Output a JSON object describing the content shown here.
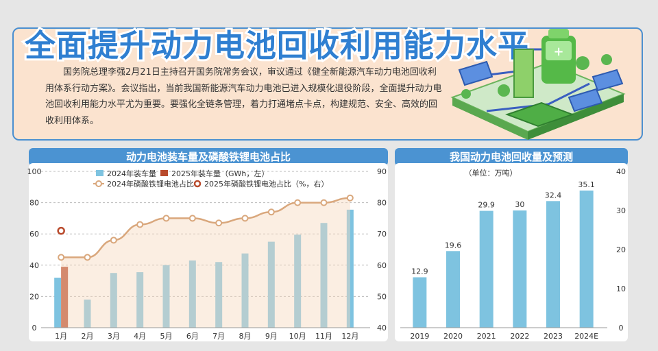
{
  "header": {
    "title": "全面提升动力电池回收利用能力水平",
    "intro": "国务院总理李强2月21日主持召开国务院常务会议，审议通过《健全新能源汽车动力电池回收利用体系行动方案》。会议指出，当前我国新能源汽车动力电池已进入规模化退役阶段，全面提升动力电池回收利用能力水平尤为重要。要强化全链条管理，着力打通堵点卡点，构建规范、安全、高效的回收利用体系。"
  },
  "colors": {
    "accent": "#2f7fd1",
    "bar_blue": "#7ec3e0",
    "bar_red": "#b94a2c",
    "line_orange": "#d9a77c",
    "panel_title_bg": "#4b93d2"
  },
  "chart_data": [
    {
      "type": "bar+line",
      "title": "动力电池装车量及磷酸铁锂电池占比",
      "categories": [
        "1月",
        "2月",
        "3月",
        "4月",
        "5月",
        "6月",
        "7月",
        "8月",
        "9月",
        "10月",
        "11月",
        "12月"
      ],
      "series": [
        {
          "name": "2024年装车量",
          "kind": "bar",
          "axis": "left",
          "values": [
            32,
            18,
            35,
            35.5,
            40,
            43,
            42,
            47.5,
            55,
            59.5,
            67,
            75.5
          ]
        },
        {
          "name": "2025年装车量（GWh，左）",
          "kind": "bar",
          "axis": "left",
          "values": [
            39,
            null,
            null,
            null,
            null,
            null,
            null,
            null,
            null,
            null,
            null,
            null
          ]
        },
        {
          "name": "2024年磷酸铁锂电池占比",
          "kind": "line",
          "axis": "right",
          "values": [
            62.5,
            62.5,
            68,
            73,
            75,
            75,
            73.5,
            75,
            77,
            80,
            80,
            81.5
          ]
        },
        {
          "name": "2025年磷酸铁锂电池占比（%，右）",
          "kind": "point",
          "axis": "right",
          "values": [
            71,
            null,
            null,
            null,
            null,
            null,
            null,
            null,
            null,
            null,
            null,
            null
          ]
        }
      ],
      "ylim_left": [
        0,
        100
      ],
      "yticks_left": [
        "0",
        "20",
        "40",
        "60",
        "80",
        "100"
      ],
      "ylim_right": [
        40,
        90
      ],
      "yticks_right": [
        "40",
        "50",
        "60",
        "70",
        "80",
        "90"
      ],
      "legend": [
        "2024年装车量",
        "2025年装车量（GWh，左）",
        "2024年磷酸铁锂电池占比",
        "2025年磷酸铁锂电池占比（%，右）"
      ]
    },
    {
      "type": "bar",
      "title": "我国动力电池回收量及预测",
      "unit": "（单位：万吨）",
      "categories": [
        "2019",
        "2020",
        "2021",
        "2022",
        "2023",
        "2024E"
      ],
      "values": [
        12.9,
        19.6,
        29.9,
        30,
        32.4,
        35.1
      ],
      "labels": [
        "12.9",
        "19.6",
        "29.9",
        "30",
        "32.4",
        "35.1"
      ],
      "ylim": [
        0,
        40
      ],
      "yticks": [
        "0",
        "10",
        "20",
        "30",
        "40"
      ]
    }
  ]
}
